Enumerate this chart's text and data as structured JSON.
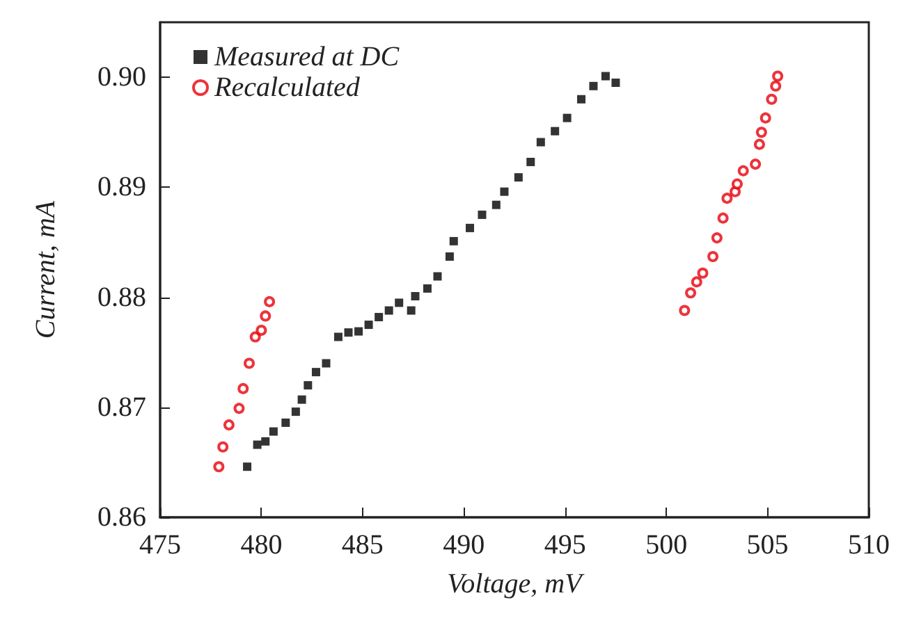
{
  "chart_data": {
    "type": "scatter",
    "xlabel": "Voltage, mV",
    "ylabel": "Current, mA",
    "xlim": [
      475,
      510
    ],
    "xticks": [
      475,
      480,
      485,
      490,
      495,
      500,
      505,
      510
    ],
    "ylim": [
      0.86,
      0.905
    ],
    "yticks": [
      0.86,
      0.87,
      0.88,
      0.89,
      {
        "value": 0.9,
        "label": "0.90"
      }
    ],
    "grid": false,
    "legend": "top left",
    "series": [
      {
        "name": "Measured at DC",
        "color": "#000000",
        "marker": "square",
        "x": [
          479.3,
          479.8,
          480.2,
          480.6,
          481.2,
          481.7,
          482.0,
          482.3,
          482.7,
          483.2,
          483.8,
          484.3,
          484.8,
          485.3,
          485.8,
          486.3,
          486.8,
          487.4,
          487.6,
          488.2,
          488.7,
          489.3,
          489.5,
          490.3,
          490.9,
          491.6,
          492.0,
          492.7,
          493.3,
          493.8,
          494.5,
          495.1,
          495.8,
          496.4,
          497.0,
          497.5
        ],
        "values": [
          0.8646,
          0.8666,
          0.8669,
          0.8678,
          0.8686,
          0.8696,
          0.8707,
          0.872,
          0.8732,
          0.874,
          0.8764,
          0.8768,
          0.8769,
          0.8775,
          0.8782,
          0.8788,
          0.8795,
          0.8788,
          0.8801,
          0.8808,
          0.8819,
          0.8837,
          0.8851,
          0.8863,
          0.8875,
          0.8884,
          0.8896,
          0.8909,
          0.8923,
          0.8941,
          0.8951,
          0.8963,
          0.898,
          0.8992,
          0.9001,
          0.8995
        ]
      },
      {
        "name": "Recalculated",
        "color": "#e8000b",
        "marker": "circle",
        "x": [
          477.9,
          478.1,
          478.4,
          478.9,
          479.1,
          479.4,
          479.7,
          480.0,
          480.2,
          480.4,
          500.9,
          501.2,
          501.5,
          501.8,
          502.3,
          502.5,
          502.8,
          503.0,
          503.4,
          503.5,
          503.8,
          504.4,
          504.6,
          504.7,
          504.9,
          505.2,
          505.4,
          505.5
        ],
        "values": [
          0.8646,
          0.8664,
          0.8684,
          0.8699,
          0.8717,
          0.874,
          0.8764,
          0.877,
          0.8783,
          0.8796,
          0.8788,
          0.8804,
          0.8814,
          0.8822,
          0.8837,
          0.8854,
          0.8872,
          0.889,
          0.8896,
          0.8903,
          0.8915,
          0.8921,
          0.8939,
          0.895,
          0.8963,
          0.898,
          0.8992,
          0.9001
        ]
      }
    ]
  }
}
